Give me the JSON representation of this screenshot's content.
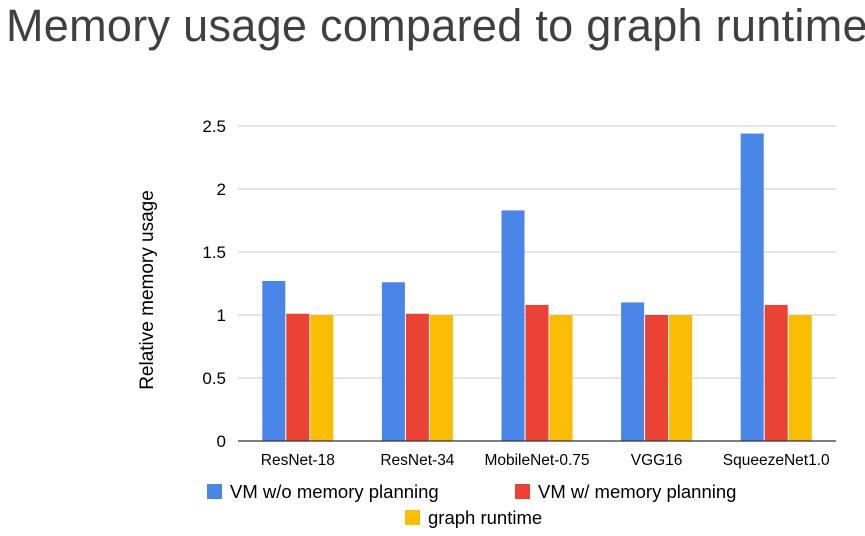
{
  "page": {
    "title": "Memory usage compared to graph runtime"
  },
  "colors": {
    "vm_no_plan": "#4a86e8",
    "vm_plan": "#ea4335",
    "graph": "#fbbc04",
    "grid": "#cccccc",
    "axis": "#333333",
    "text": "#000000"
  },
  "chart_data": {
    "type": "bar",
    "title": "Memory usage compared to graph runtime",
    "xlabel": "",
    "ylabel": "Relative memory usage",
    "ylim": [
      0,
      2.5
    ],
    "yticks": [
      0,
      0.5,
      1,
      1.5,
      2,
      2.5
    ],
    "ytick_labels": [
      "0",
      "0.5",
      "1",
      "1.5",
      "2",
      "2.5"
    ],
    "grid": true,
    "legend_position": "bottom",
    "categories": [
      "ResNet-18",
      "ResNet-34",
      "MobileNet-0.75",
      "VGG16",
      "SqueezeNet1.0"
    ],
    "series": [
      {
        "name": "VM w/o memory planning",
        "color": "#4a86e8",
        "values": [
          1.27,
          1.26,
          1.83,
          1.1,
          2.44
        ]
      },
      {
        "name": "VM w/ memory planning",
        "color": "#ea4335",
        "values": [
          1.01,
          1.01,
          1.08,
          1.0,
          1.08
        ]
      },
      {
        "name": "graph runtime",
        "color": "#fbbc04",
        "values": [
          1.0,
          1.0,
          1.0,
          1.0,
          1.0
        ]
      }
    ]
  }
}
